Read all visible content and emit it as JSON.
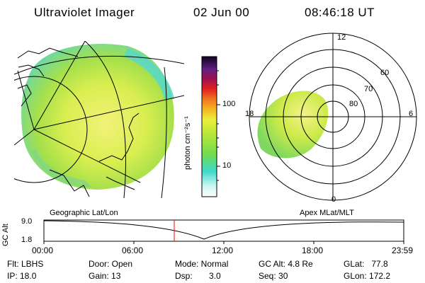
{
  "header": {
    "title": "Ultraviolet Imager",
    "date": "02 Jun 00",
    "time": "08:46:18 UT"
  },
  "colorbar": {
    "unit_label": "photon cm⁻²s⁻¹",
    "ticks": [
      "100",
      "10"
    ]
  },
  "polar": {
    "mlt_labels": {
      "top": "12",
      "left": "18",
      "right": "6",
      "bottom": "0"
    },
    "lat_labels": [
      "60",
      "70",
      "80"
    ]
  },
  "panel_labels": {
    "left": "Geographic Lat/Lon",
    "right": "Apex MLat/MLT"
  },
  "altitude_plot": {
    "ylabel": "GC Alt",
    "yticks": [
      "9.0",
      "1.8"
    ],
    "xticks": [
      "00:00",
      "06:00",
      "12:00",
      "18:00",
      "23:59"
    ]
  },
  "info": {
    "flt": "Flt: LBHS",
    "ip": "IP: 18.0",
    "door": "Door: Open",
    "gain": "Gain: 13",
    "mode": "Mode: Normal",
    "dsp": "Dsp:       3.0",
    "gcalt": "GC Alt: 4.8 Re",
    "seq": "Seq: 30",
    "glat": "GLat:   77.8",
    "glon": "GLon: 172.2"
  },
  "colors": {
    "cursor": "#ff0000",
    "axes": "#000000"
  }
}
